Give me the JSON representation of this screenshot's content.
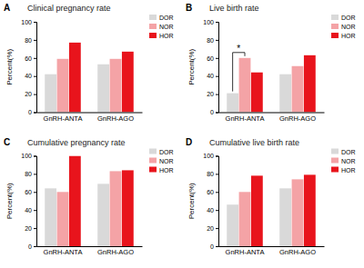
{
  "chart_data": [
    {
      "type": "bar",
      "panel": "A",
      "title": "Clinical pregnancy rate",
      "y_label": "Percent(%)",
      "categories": [
        "GnRH-ANTA",
        "GnRH-AGO"
      ],
      "series": [
        {
          "name": "DOR",
          "color": "#d9d9d9",
          "values": [
            42,
            53
          ]
        },
        {
          "name": "NOR",
          "color": "#f4a3a6",
          "values": [
            59,
            59
          ]
        },
        {
          "name": "HOR",
          "color": "#e8141c",
          "values": [
            77,
            67
          ]
        }
      ],
      "ylim": [
        0,
        100
      ],
      "yticks": [
        0,
        20,
        40,
        60,
        80,
        100
      ],
      "legend": "upper right"
    },
    {
      "type": "bar",
      "panel": "B",
      "title": "Live birth rate",
      "y_label": "Percent(%)",
      "categories": [
        "GnRH-ANTA",
        "GnRH-AGO"
      ],
      "series": [
        {
          "name": "DOR",
          "color": "#d9d9d9",
          "values": [
            21,
            42
          ]
        },
        {
          "name": "NOR",
          "color": "#f4a3a6",
          "values": [
            60,
            51
          ]
        },
        {
          "name": "HOR",
          "color": "#e8141c",
          "values": [
            44,
            63
          ]
        }
      ],
      "ylim": [
        0,
        100
      ],
      "yticks": [
        0,
        20,
        40,
        60,
        80,
        100
      ],
      "legend": "upper right",
      "annotations": [
        {
          "text": "*",
          "category": "GnRH-ANTA",
          "series": [
            "DOR",
            "NOR"
          ]
        }
      ]
    },
    {
      "type": "bar",
      "panel": "C",
      "title": "Cumulative pregnancy rate",
      "y_label": "Percent(%)",
      "categories": [
        "GnRH-ANTA",
        "GnRH-AGO"
      ],
      "series": [
        {
          "name": "DOR",
          "color": "#d9d9d9",
          "values": [
            64,
            69
          ]
        },
        {
          "name": "NOR",
          "color": "#f4a3a6",
          "values": [
            60,
            83
          ]
        },
        {
          "name": "HOR",
          "color": "#e8141c",
          "values": [
            100,
            84
          ]
        }
      ],
      "ylim": [
        0,
        100
      ],
      "yticks": [
        0,
        20,
        40,
        60,
        80,
        100
      ],
      "legend": "upper right"
    },
    {
      "type": "bar",
      "panel": "D",
      "title": "Cumulative live birth rate",
      "y_label": "Percent(%)",
      "categories": [
        "GnRH-ANTA",
        "GnRH-AGO"
      ],
      "series": [
        {
          "name": "DOR",
          "color": "#d9d9d9",
          "values": [
            46,
            64
          ]
        },
        {
          "name": "NOR",
          "color": "#f4a3a6",
          "values": [
            60,
            74
          ]
        },
        {
          "name": "HOR",
          "color": "#e8141c",
          "values": [
            78,
            79
          ]
        }
      ],
      "ylim": [
        0,
        100
      ],
      "yticks": [
        0,
        20,
        40,
        60,
        80,
        100
      ],
      "legend": "upper right"
    }
  ]
}
